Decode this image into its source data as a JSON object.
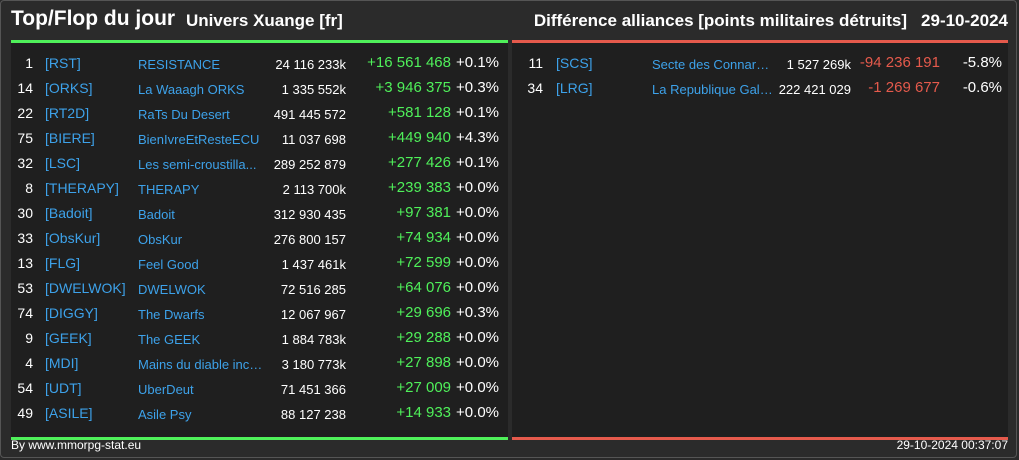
{
  "header": {
    "title": "Top/Flop du jour",
    "universe": "Univers Xuange [fr]",
    "subtitle": "Différence alliances [points militaires détruits]",
    "date": "29-10-2024"
  },
  "top": [
    {
      "rank": "1",
      "tag": "[RST]",
      "name": "RESISTANCE",
      "points": "24 116 233k",
      "diff": "+16 561 468",
      "pct": "+0.1%"
    },
    {
      "rank": "14",
      "tag": "[ORKS]",
      "name": "La Waaagh ORKS",
      "points": "1 335 552k",
      "diff": "+3 946 375",
      "pct": "+0.3%"
    },
    {
      "rank": "22",
      "tag": "[RT2D]",
      "name": "RaTs Du Desert",
      "points": "491 445 572",
      "diff": "+581 128",
      "pct": "+0.1%"
    },
    {
      "rank": "75",
      "tag": "[BIERE]",
      "name": "BienIvreEtResteECU",
      "points": "11 037 698",
      "diff": "+449 940",
      "pct": "+4.3%"
    },
    {
      "rank": "32",
      "tag": "[LSC]",
      "name": "Les semi-croustilla...",
      "points": "289 252 879",
      "diff": "+277 426",
      "pct": "+0.1%"
    },
    {
      "rank": "8",
      "tag": "[THERAPY]",
      "name": "THERAPY",
      "points": "2 113 700k",
      "diff": "+239 383",
      "pct": "+0.0%"
    },
    {
      "rank": "30",
      "tag": "[Badoit]",
      "name": "Badoit",
      "points": "312 930 435",
      "diff": "+97 381",
      "pct": "+0.0%"
    },
    {
      "rank": "33",
      "tag": "[ObsKur]",
      "name": "ObsKur",
      "points": "276 800 157",
      "diff": "+74 934",
      "pct": "+0.0%"
    },
    {
      "rank": "13",
      "tag": "[FLG]",
      "name": "Feel Good",
      "points": "1 437 461k",
      "diff": "+72 599",
      "pct": "+0.0%"
    },
    {
      "rank": "53",
      "tag": "[DWELWOK]",
      "name": "DWELWOK",
      "points": "72 516 285",
      "diff": "+64 076",
      "pct": "+0.0%"
    },
    {
      "rank": "74",
      "tag": "[DIGGY]",
      "name": "The Dwarfs",
      "points": "12 067 967",
      "diff": "+29 696",
      "pct": "+0.3%"
    },
    {
      "rank": "9",
      "tag": "[GEEK]",
      "name": "The GEEK",
      "points": "1 884 783k",
      "diff": "+29 288",
      "pct": "+0.0%"
    },
    {
      "rank": "4",
      "tag": "[MDI]",
      "name": "Mains du diable inco...",
      "points": "3 180 773k",
      "diff": "+27 898",
      "pct": "+0.0%"
    },
    {
      "rank": "54",
      "tag": "[UDT]",
      "name": "UberDeut",
      "points": "71 451 366",
      "diff": "+27 009",
      "pct": "+0.0%"
    },
    {
      "rank": "49",
      "tag": "[ASILE]",
      "name": "Asile Psy",
      "points": "88 127 238",
      "diff": "+14 933",
      "pct": "+0.0%"
    }
  ],
  "flop": [
    {
      "rank": "11",
      "tag": "[SCS]",
      "name": "Secte des Connard...",
      "points": "1 527 269k",
      "diff": "-94 236 191",
      "pct": "-5.8%"
    },
    {
      "rank": "34",
      "tag": "[LRG]",
      "name": "La Republique Gala...",
      "points": "222 421 029",
      "diff": "-1 269 677",
      "pct": "-0.6%"
    }
  ],
  "footer": {
    "site": "By www.mmorpg-stat.eu",
    "timestamp": "29-10-2024 00:37:07"
  },
  "colors": {
    "positive": "#4ff05a",
    "negative": "#e55a4c",
    "link": "#3da2ea"
  }
}
